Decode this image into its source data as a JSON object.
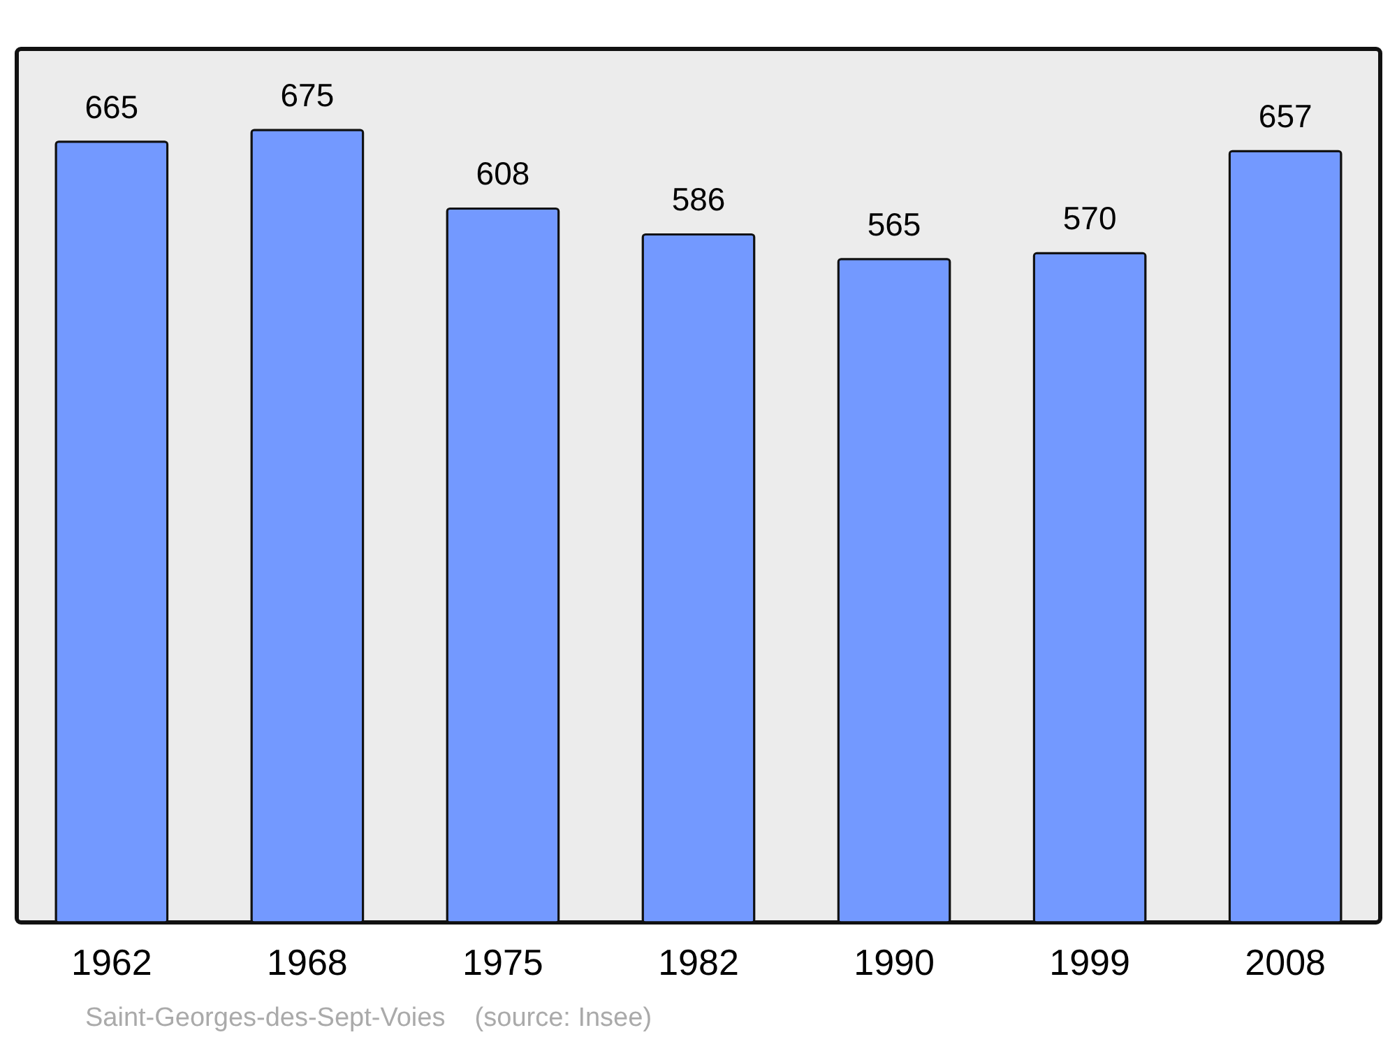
{
  "chart_data": {
    "type": "bar",
    "categories": [
      "1962",
      "1968",
      "1975",
      "1982",
      "1990",
      "1999",
      "2008"
    ],
    "values": [
      665,
      675,
      608,
      586,
      565,
      570,
      657
    ],
    "color": "#7399ff",
    "ylim": [
      0,
      744
    ],
    "data_labels": true,
    "tick_labels": "x",
    "annotations": [
      "Saint-Georges-des-Sept-Voies    (source: Insee)"
    ]
  }
}
